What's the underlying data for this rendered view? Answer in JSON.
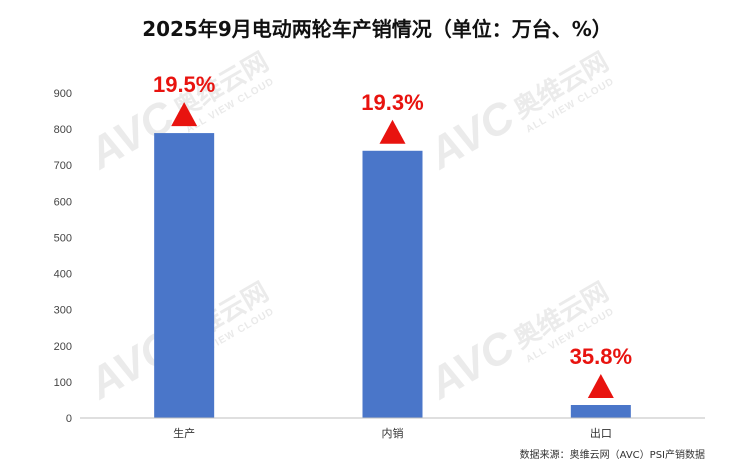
{
  "chart_data": {
    "type": "bar",
    "title": "2025年9月电动两轮车产销情况（单位：万台、%）",
    "categories": [
      "生产",
      "内销",
      "出口"
    ],
    "values": [
      789,
      740,
      36
    ],
    "growth_labels": [
      "19.5%",
      "19.3%",
      "35.8%"
    ],
    "y_ticks": [
      "0",
      "100",
      "200",
      "300",
      "400",
      "500",
      "600",
      "700",
      "800",
      "900"
    ],
    "ylim": [
      0,
      900
    ],
    "xlabel": "",
    "ylabel": "",
    "grid": false,
    "source": "数据来源：奥维云网（AVC）PSI产销数据",
    "colors": {
      "bar": "#4a76c9",
      "growth": "#e8130f",
      "axis": "#bfbfbf"
    }
  },
  "watermark": {
    "logo": "AVC",
    "name": "奥维云网",
    "tagline": "ALL VIEW CLOUD"
  }
}
